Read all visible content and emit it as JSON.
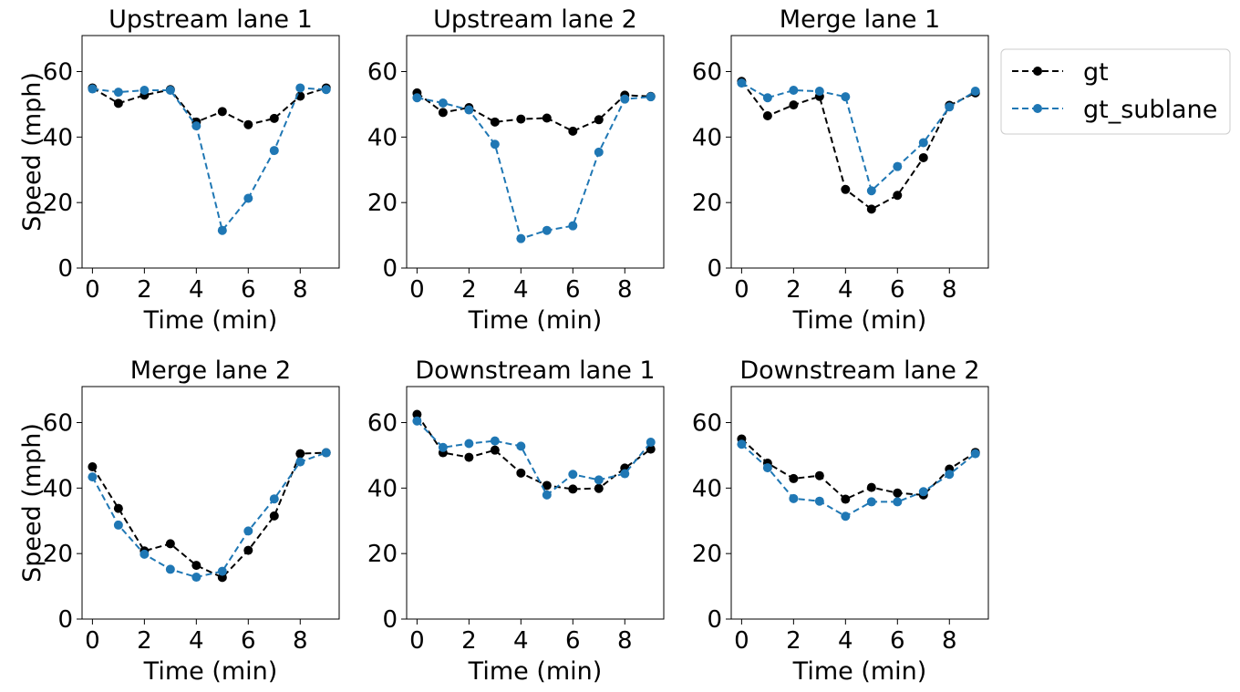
{
  "legend": {
    "entries": [
      {
        "label": "gt",
        "color": "#000000"
      },
      {
        "label": "gt_sublane",
        "color": "#1f77b4"
      }
    ],
    "placement": "outside-right-top"
  },
  "chart_data": [
    {
      "type": "line",
      "title": "Upstream lane 1",
      "xlabel": "Time (min)",
      "ylabel": "Speed (mph)",
      "xlim": [
        -0.4,
        9.5
      ],
      "ylim": [
        0,
        71
      ],
      "xticks": [
        "0",
        "2",
        "4",
        "6",
        "8"
      ],
      "yticks": [
        "0",
        "20",
        "40",
        "60"
      ],
      "x": [
        0,
        1,
        2,
        3,
        4,
        5,
        6,
        7,
        8,
        9
      ],
      "series": [
        {
          "name": "gt",
          "values": [
            55.0,
            50.3,
            52.8,
            54.5,
            44.6,
            47.8,
            43.8,
            45.7,
            52.5,
            55.0
          ]
        },
        {
          "name": "gt_sublane",
          "values": [
            54.7,
            53.7,
            54.3,
            54.3,
            43.4,
            11.5,
            21.3,
            35.9,
            55.0,
            54.5
          ]
        }
      ]
    },
    {
      "type": "line",
      "title": "Upstream lane 2",
      "xlabel": "Time (min)",
      "ylabel": "",
      "xlim": [
        -0.4,
        9.5
      ],
      "ylim": [
        0,
        71
      ],
      "xticks": [
        "0",
        "2",
        "4",
        "6",
        "8"
      ],
      "yticks": [
        "0",
        "20",
        "40",
        "60"
      ],
      "x": [
        0,
        1,
        2,
        3,
        4,
        5,
        6,
        7,
        8,
        9
      ],
      "series": [
        {
          "name": "gt",
          "values": [
            53.5,
            47.5,
            49.0,
            44.6,
            45.5,
            45.8,
            41.8,
            45.3,
            52.8,
            52.4
          ]
        },
        {
          "name": "gt_sublane",
          "values": [
            52.0,
            50.4,
            48.3,
            37.8,
            9.0,
            11.5,
            12.9,
            35.4,
            51.6,
            52.3
          ]
        }
      ]
    },
    {
      "type": "line",
      "title": "Merge lane 1",
      "xlabel": "Time (min)",
      "ylabel": "",
      "xlim": [
        -0.4,
        9.5
      ],
      "ylim": [
        0,
        71
      ],
      "xticks": [
        "0",
        "2",
        "4",
        "6",
        "8"
      ],
      "yticks": [
        "0",
        "20",
        "40",
        "60"
      ],
      "x": [
        0,
        1,
        2,
        3,
        4,
        5,
        6,
        7,
        8,
        9
      ],
      "series": [
        {
          "name": "gt",
          "values": [
            57.0,
            46.5,
            49.8,
            52.4,
            24.0,
            18.0,
            22.2,
            33.7,
            49.7,
            53.5
          ]
        },
        {
          "name": "gt_sublane",
          "values": [
            56.5,
            52.0,
            54.3,
            54.0,
            52.3,
            23.6,
            31.0,
            38.3,
            49.2,
            54.0
          ]
        }
      ]
    },
    {
      "type": "line",
      "title": "Merge lane 2",
      "xlabel": "Time (min)",
      "ylabel": "Speed (mph)",
      "xlim": [
        -0.4,
        9.5
      ],
      "ylim": [
        0,
        71
      ],
      "xticks": [
        "0",
        "2",
        "4",
        "6",
        "8"
      ],
      "yticks": [
        "0",
        "20",
        "40",
        "60"
      ],
      "x": [
        0,
        1,
        2,
        3,
        4,
        5,
        6,
        7,
        8,
        9
      ],
      "series": [
        {
          "name": "gt",
          "values": [
            46.5,
            33.8,
            20.8,
            23.0,
            16.4,
            12.7,
            21.0,
            31.5,
            50.5,
            50.8
          ]
        },
        {
          "name": "gt_sublane",
          "values": [
            43.4,
            28.7,
            19.8,
            15.2,
            12.8,
            14.6,
            26.9,
            36.7,
            48.0,
            50.8
          ]
        }
      ]
    },
    {
      "type": "line",
      "title": "Downstream lane 1",
      "xlabel": "Time (min)",
      "ylabel": "",
      "xlim": [
        -0.4,
        9.5
      ],
      "ylim": [
        0,
        71
      ],
      "xticks": [
        "0",
        "2",
        "4",
        "6",
        "8"
      ],
      "yticks": [
        "0",
        "20",
        "40",
        "60"
      ],
      "x": [
        0,
        1,
        2,
        3,
        4,
        5,
        6,
        7,
        8,
        9
      ],
      "series": [
        {
          "name": "gt",
          "values": [
            62.5,
            50.8,
            49.4,
            51.6,
            44.6,
            40.8,
            39.7,
            39.9,
            46.1,
            51.9
          ]
        },
        {
          "name": "gt_sublane",
          "values": [
            60.5,
            52.4,
            53.6,
            54.4,
            52.8,
            37.9,
            44.2,
            42.5,
            44.4,
            54.0
          ]
        }
      ]
    },
    {
      "type": "line",
      "title": "Downstream lane 2",
      "xlabel": "Time (min)",
      "ylabel": "",
      "xlim": [
        -0.4,
        9.5
      ],
      "ylim": [
        0,
        71
      ],
      "xticks": [
        "0",
        "2",
        "4",
        "6",
        "8"
      ],
      "yticks": [
        "0",
        "20",
        "40",
        "60"
      ],
      "x": [
        0,
        1,
        2,
        3,
        4,
        5,
        6,
        7,
        8,
        9
      ],
      "series": [
        {
          "name": "gt",
          "values": [
            55.0,
            47.6,
            42.9,
            43.8,
            36.6,
            40.2,
            38.5,
            37.9,
            45.8,
            50.9
          ]
        },
        {
          "name": "gt_sublane",
          "values": [
            53.4,
            46.2,
            36.8,
            36.0,
            31.4,
            35.8,
            35.8,
            38.9,
            44.2,
            50.5
          ]
        }
      ]
    }
  ]
}
